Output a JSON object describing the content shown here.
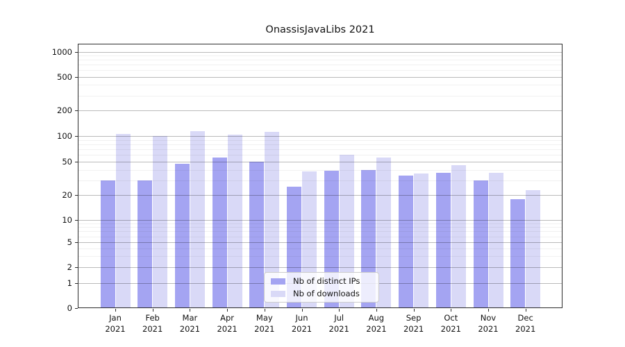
{
  "title": "OnassisJavaLibs 2021",
  "chart_data": {
    "type": "bar",
    "categories": [
      "Jan 2021",
      "Feb 2021",
      "Mar 2021",
      "Apr 2021",
      "May 2021",
      "Jun 2021",
      "Jul 2021",
      "Aug 2021",
      "Sep 2021",
      "Oct 2021",
      "Nov 2021",
      "Dec 2021"
    ],
    "series": [
      {
        "name": "Nb of distinct IPs",
        "color": "#a4a4f2",
        "values": [
          30,
          30,
          47,
          56,
          50,
          25,
          39,
          40,
          34,
          37,
          30,
          18
        ]
      },
      {
        "name": "Nb of downloads",
        "color": "#d9d9f7",
        "values": [
          105,
          100,
          113,
          103,
          111,
          38,
          60,
          56,
          36,
          45,
          37,
          23
        ]
      }
    ],
    "yscale": "symlog",
    "y_ticks": [
      0,
      1,
      2,
      5,
      10,
      20,
      50,
      100,
      200,
      500,
      1000
    ],
    "ylim": [
      0,
      1250
    ],
    "grid": true,
    "legend_position": "lower center",
    "legend_entries": [
      "Nb of distinct IPs",
      "Nb of downloads"
    ]
  }
}
